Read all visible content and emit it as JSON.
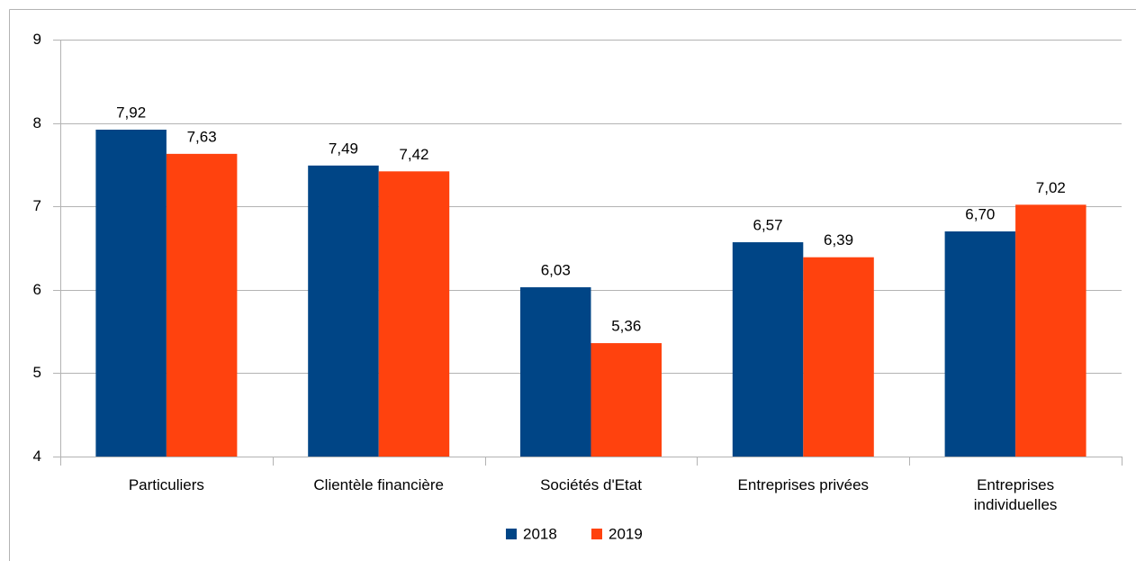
{
  "chart_data": {
    "type": "bar",
    "categories": [
      "Particuliers",
      "Clientèle financière",
      "Sociétés d'Etat",
      "Entreprises privées",
      "Entreprises individuelles"
    ],
    "series": [
      {
        "name": "2018",
        "color": "#004586",
        "values": [
          7.92,
          7.49,
          6.03,
          6.57,
          6.7
        ],
        "value_labels": [
          "7,92",
          "7,49",
          "6,03",
          "6,57",
          "6,70"
        ]
      },
      {
        "name": "2019",
        "color": "#ff420e",
        "values": [
          7.63,
          7.42,
          5.36,
          6.39,
          7.02
        ],
        "value_labels": [
          "7,63",
          "7,42",
          "5,36",
          "6,39",
          "7,02"
        ]
      }
    ],
    "ylim": [
      4,
      9
    ],
    "yticks": [
      4,
      5,
      6,
      7,
      8,
      9
    ],
    "grid": true,
    "legend": "bottom"
  }
}
